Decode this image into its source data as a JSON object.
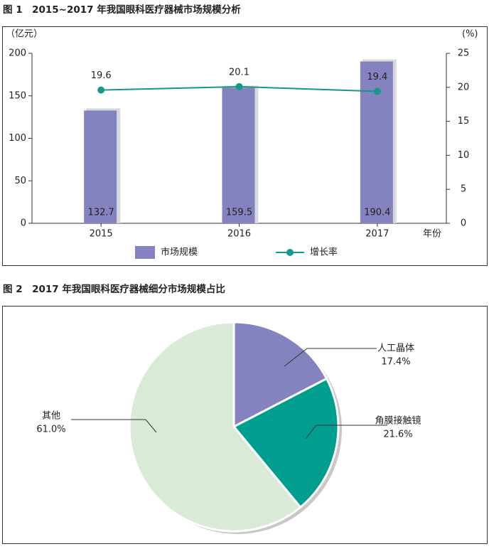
{
  "chart_data": [
    {
      "type": "bar",
      "title": "图 1　2015~2017 年我国眼科医疗器械市场规模分析",
      "y_label": "（亿元）",
      "y2_label": "(%)",
      "x_label": "年份",
      "categories": [
        "2015",
        "2016",
        "2017"
      ],
      "series": [
        {
          "name": "市场规模",
          "color": "#8483bf",
          "values": [
            132.7,
            159.5,
            190.4
          ]
        },
        {
          "name": "增长率",
          "color": "#14998c",
          "axis": "y2",
          "values": [
            19.6,
            20.1,
            19.4
          ]
        }
      ],
      "ylim": [
        0,
        200
      ],
      "yticks": [
        0,
        50,
        100,
        150,
        200
      ],
      "y2lim": [
        0,
        25
      ],
      "y2ticks": [
        0,
        5,
        10,
        15,
        20,
        25
      ],
      "grid": false,
      "legend": "bottom"
    },
    {
      "type": "pie",
      "title": "图 2　2017 年我国眼科医疗器械细分市场规模占比",
      "categories": [
        "人工晶体",
        "角膜接触镜",
        "其他"
      ],
      "values": [
        17.4,
        21.6,
        61.0
      ],
      "value_labels": [
        "17.4%",
        "21.6%",
        "61.0%"
      ],
      "colors": [
        "#8483bf",
        "#009e8e",
        "#d9ead6"
      ]
    }
  ]
}
